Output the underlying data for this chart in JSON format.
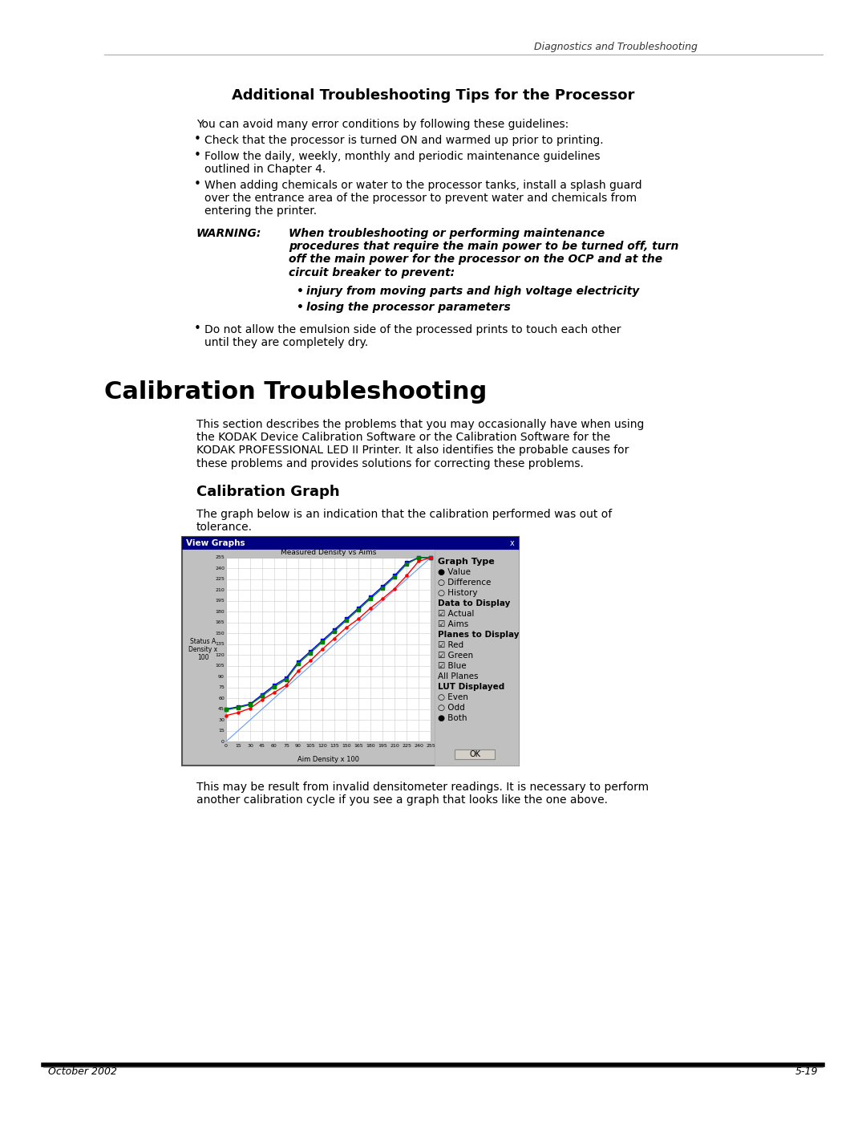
{
  "page_bg": "#ffffff",
  "header_line_color": "#888888",
  "header_text": "Diagnostics and Troubleshooting",
  "section1_title": "Additional Troubleshooting Tips for the Processor",
  "section1_intro": "You can avoid many error conditions by following these guidelines:",
  "bullets": [
    "Check that the processor is turned ON and warmed up prior to printing.",
    "Follow the daily, weekly, monthly and periodic maintenance guidelines\noutlined in Chapter 4.",
    "When adding chemicals or water to the processor tanks, install a splash guard\nover the entrance area of the processor to prevent water and chemicals from\nentering the printer."
  ],
  "warning_label": "WARNING:",
  "warning_text": "When troubleshooting or performing maintenance\nprocedures that require the main power to be turned off, turn\noff the main power for the processor on the OCP and at the\ncircuit breaker to prevent:",
  "warning_sub_bullets": [
    "injury from moving parts and high voltage electricity",
    "losing the processor parameters"
  ],
  "last_bullet": "Do not allow the emulsion side of the processed prints to touch each other\nuntil they are completely dry.",
  "section2_title": "Calibration Troubleshooting",
  "section2_intro": "This section describes the problems that you may occasionally have when using\nthe KODAK Device Calibration Software or the Calibration Software for the\nKODAK PROFESSIONAL LED II Printer. It also identifies the probable causes for\nthese problems and provides solutions for correcting these problems.",
  "section3_title": "Calibration Graph",
  "section3_intro": "The graph below is an indication that the calibration performed was out of\ntolerance.",
  "graph_title": "Measured Density vs Aims",
  "graph_xlabel": "Aim Density x 100",
  "graph_ylabel": "Status A\nDensity x\n100",
  "graph_window_title": "View Graphs",
  "graph_xticks": [
    0,
    15,
    30,
    45,
    60,
    75,
    90,
    105,
    120,
    135,
    150,
    165,
    180,
    195,
    210,
    225,
    240,
    255
  ],
  "graph_yticks": [
    0,
    15,
    30,
    45,
    60,
    75,
    90,
    105,
    120,
    135,
    150,
    165,
    180,
    195,
    210,
    225,
    240,
    255
  ],
  "aim_x": [
    0,
    15,
    30,
    45,
    60,
    75,
    90,
    105,
    120,
    135,
    150,
    165,
    180,
    195,
    210,
    225,
    240,
    255
  ],
  "blue_y": [
    45,
    48,
    52,
    65,
    78,
    88,
    110,
    125,
    140,
    155,
    170,
    185,
    200,
    215,
    230,
    248,
    255,
    255
  ],
  "green_y": [
    44,
    47,
    51,
    63,
    76,
    86,
    108,
    123,
    138,
    153,
    168,
    183,
    198,
    213,
    228,
    246,
    255,
    255
  ],
  "red_y": [
    36,
    40,
    46,
    58,
    68,
    78,
    98,
    112,
    128,
    143,
    158,
    170,
    185,
    198,
    212,
    230,
    250,
    255
  ],
  "footer_date": "October 2002",
  "footer_page": "5-19",
  "section3_footer": "This may be result from invalid densitometer readings. It is necessary to perform\nanother calibration cycle if you see a graph that looks like the one above.",
  "panel_right_labels": [
    "Graph Type",
    "Value",
    "Difference",
    "History",
    "Data to Display",
    "Actual",
    "Aims",
    "Planes to Display",
    "Red",
    "Green",
    "Blue",
    "All Planes",
    "LUT Displayed",
    "Even",
    "Odd",
    "Both",
    "OK"
  ]
}
